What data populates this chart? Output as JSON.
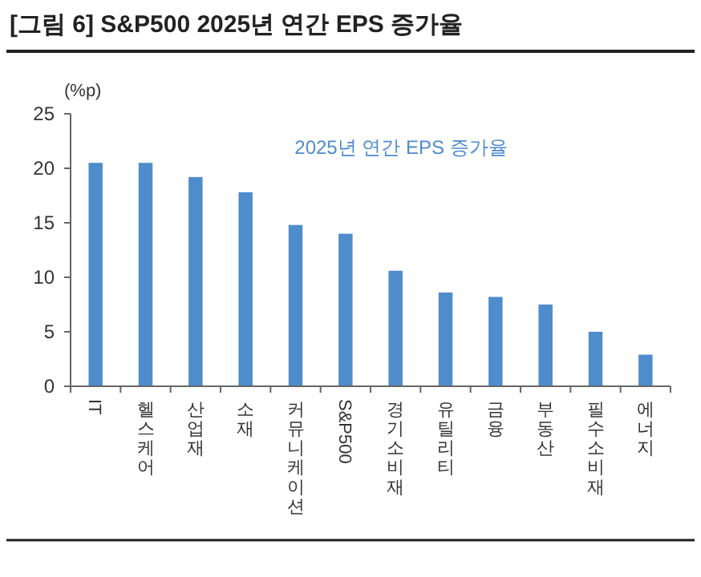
{
  "chart_data": {
    "type": "bar",
    "title": "[그림 6] S&P500 2025년 연간 EPS 증가율",
    "ylabel": "(%p)",
    "categories": [
      "IT",
      "헬스케어",
      "산업재",
      "소재",
      "커뮤니케이션",
      "S&P500",
      "경기소비재",
      "유틸리티",
      "금융",
      "부동산",
      "필수소비재",
      "에너지"
    ],
    "series": [
      {
        "name": "2025년 연간 EPS 증가율",
        "color": "#4f8ccc",
        "values": [
          20.5,
          20.5,
          19.2,
          17.8,
          14.8,
          14.0,
          10.6,
          8.6,
          8.2,
          7.5,
          5.0,
          2.9
        ]
      }
    ],
    "ylim": [
      0,
      25
    ],
    "yticks": [
      0,
      5,
      10,
      15,
      20,
      25
    ],
    "legend": "top",
    "grid": false
  }
}
